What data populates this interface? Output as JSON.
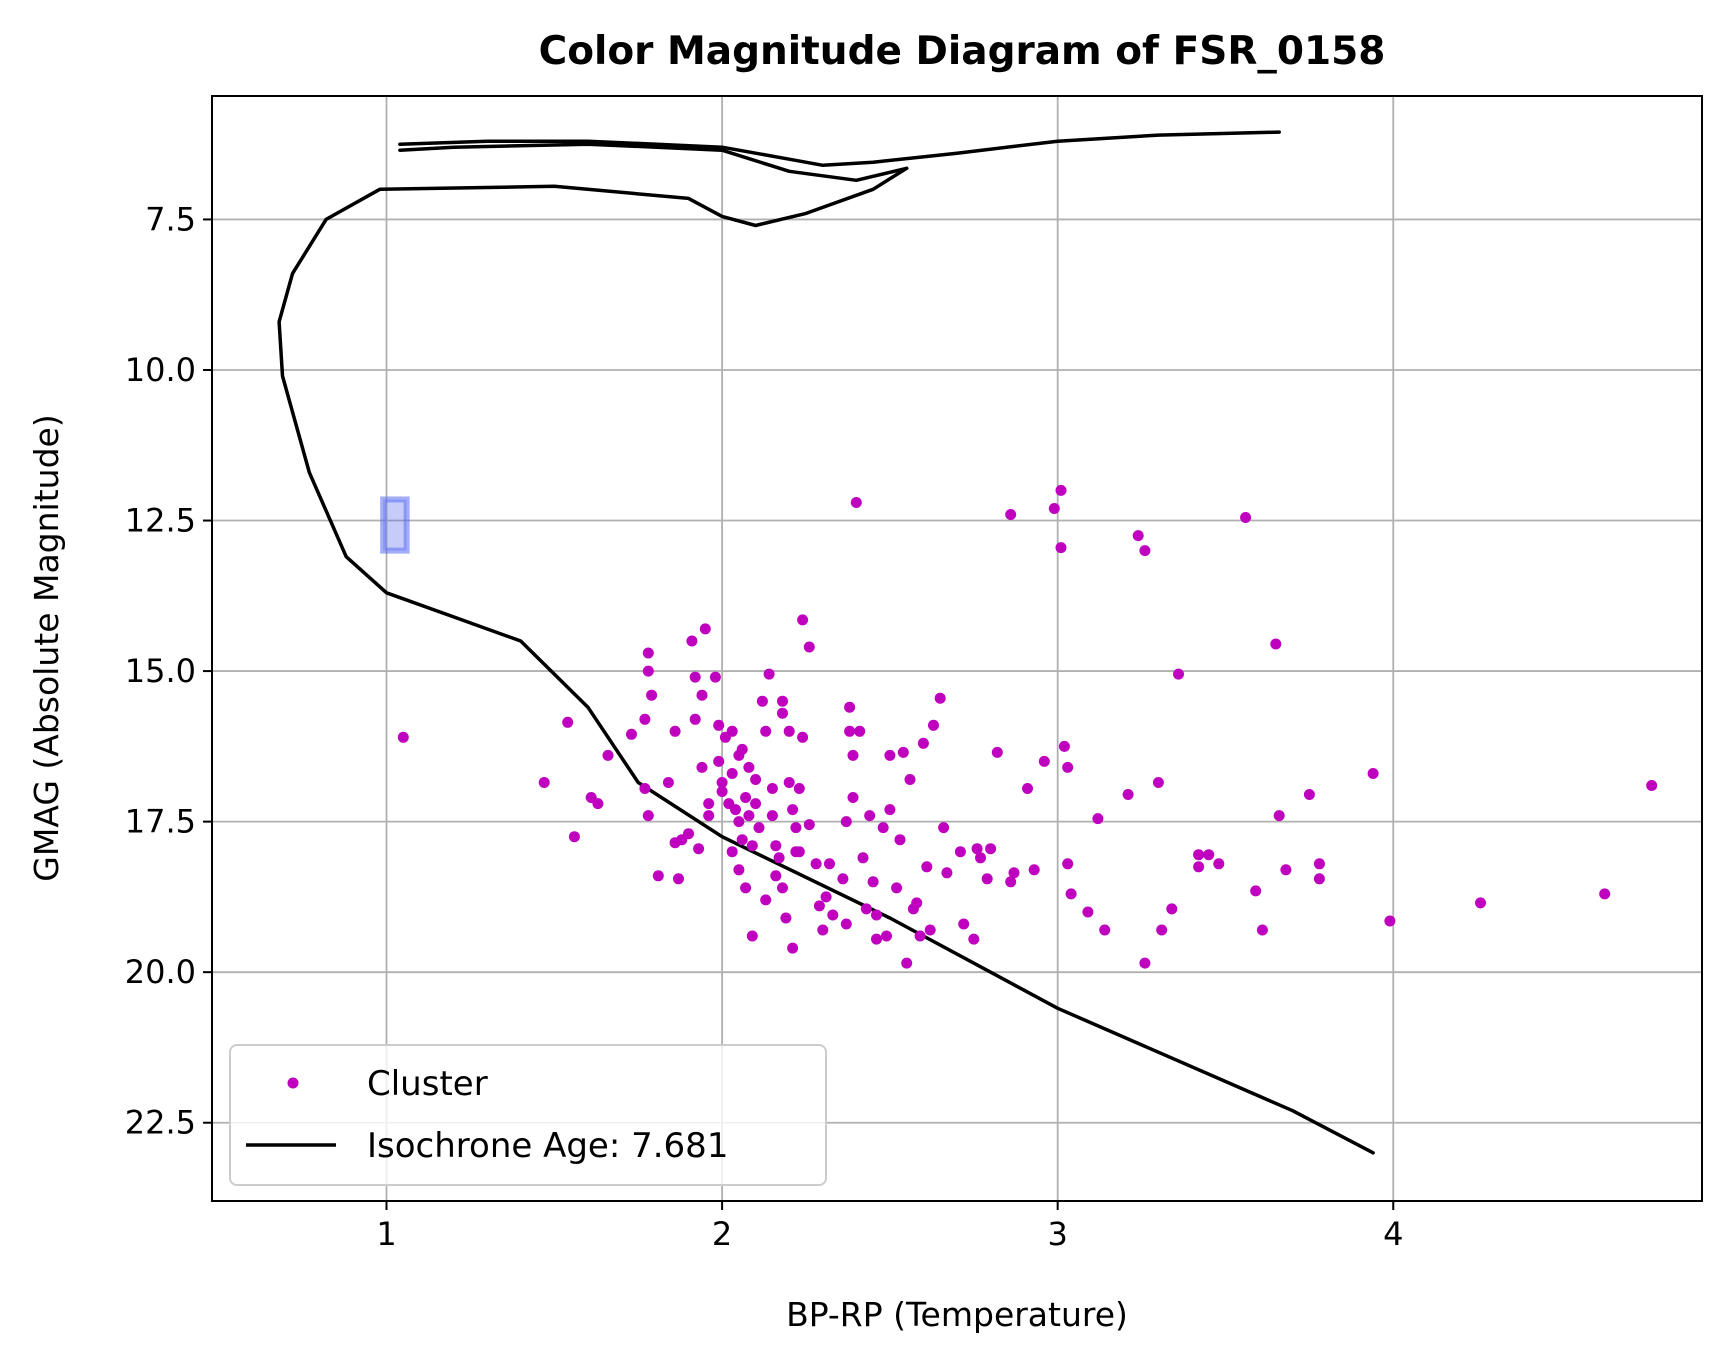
{
  "chart_data": {
    "type": "scatter",
    "title": "Color Magnitude Diagram of FSR_0158",
    "xlabel": "BP-RP (Temperature)",
    "ylabel": "GMAG (Absolute Magnitude)",
    "xlim": [
      0.48,
      4.92
    ],
    "ylim": [
      23.8,
      5.45
    ],
    "y_inverted": true,
    "grid": true,
    "legend_position": "lower-left",
    "xticks": [
      1,
      2,
      3,
      4
    ],
    "xtick_labels": [
      "1",
      "2",
      "3",
      "4"
    ],
    "yticks": [
      7.5,
      10.0,
      12.5,
      15.0,
      17.5,
      20.0,
      22.5
    ],
    "ytick_labels": [
      "7.5",
      "10.0",
      "12.5",
      "15.0",
      "17.5",
      "20.0",
      "22.5"
    ],
    "colors": {
      "cluster": "#bf00bf",
      "isochrone": "#000000",
      "highlight": "#5a6cf2"
    },
    "series": [
      {
        "name": "Cluster",
        "type": "scatter",
        "points": [
          [
            1.05,
            16.1
          ],
          [
            1.47,
            16.85
          ],
          [
            1.54,
            15.85
          ],
          [
            1.56,
            17.75
          ],
          [
            1.61,
            17.1
          ],
          [
            1.63,
            17.2
          ],
          [
            1.66,
            16.4
          ],
          [
            1.73,
            16.05
          ],
          [
            1.77,
            15.8
          ],
          [
            1.78,
            14.7
          ],
          [
            1.78,
            15.0
          ],
          [
            1.79,
            15.4
          ],
          [
            1.78,
            17.4
          ],
          [
            1.77,
            16.95
          ],
          [
            1.81,
            18.4
          ],
          [
            1.84,
            16.85
          ],
          [
            1.86,
            16.0
          ],
          [
            1.86,
            17.85
          ],
          [
            1.88,
            17.8
          ],
          [
            1.87,
            18.45
          ],
          [
            1.9,
            17.7
          ],
          [
            1.91,
            14.5
          ],
          [
            1.92,
            15.1
          ],
          [
            1.92,
            15.8
          ],
          [
            1.94,
            15.4
          ],
          [
            1.95,
            14.3
          ],
          [
            1.94,
            16.6
          ],
          [
            1.96,
            17.2
          ],
          [
            1.96,
            17.4
          ],
          [
            1.93,
            17.95
          ],
          [
            1.98,
            15.1
          ],
          [
            1.99,
            15.9
          ],
          [
            2.01,
            16.1
          ],
          [
            1.99,
            16.5
          ],
          [
            2.0,
            16.85
          ],
          [
            2.0,
            17.0
          ],
          [
            2.02,
            17.2
          ],
          [
            2.03,
            16.0
          ],
          [
            2.03,
            16.7
          ],
          [
            2.04,
            17.3
          ],
          [
            2.05,
            16.4
          ],
          [
            2.05,
            17.5
          ],
          [
            2.06,
            17.8
          ],
          [
            2.06,
            16.3
          ],
          [
            2.07,
            17.1
          ],
          [
            2.08,
            16.6
          ],
          [
            2.08,
            17.4
          ],
          [
            2.09,
            17.9
          ],
          [
            2.1,
            16.8
          ],
          [
            2.1,
            17.2
          ],
          [
            2.11,
            17.6
          ],
          [
            2.12,
            15.5
          ],
          [
            2.14,
            15.05
          ],
          [
            2.13,
            16.0
          ],
          [
            2.15,
            16.95
          ],
          [
            2.15,
            17.4
          ],
          [
            2.16,
            17.9
          ],
          [
            2.17,
            18.1
          ],
          [
            2.18,
            15.5
          ],
          [
            2.18,
            15.7
          ],
          [
            2.2,
            16.0
          ],
          [
            2.2,
            16.85
          ],
          [
            2.21,
            17.3
          ],
          [
            2.22,
            17.6
          ],
          [
            2.23,
            18.0
          ],
          [
            2.24,
            14.15
          ],
          [
            2.26,
            14.6
          ],
          [
            2.24,
            16.1
          ],
          [
            2.23,
            16.95
          ],
          [
            2.26,
            17.55
          ],
          [
            2.03,
            18.0
          ],
          [
            2.05,
            18.3
          ],
          [
            2.07,
            18.6
          ],
          [
            2.09,
            19.4
          ],
          [
            2.13,
            18.8
          ],
          [
            2.16,
            18.4
          ],
          [
            2.18,
            18.6
          ],
          [
            2.19,
            19.1
          ],
          [
            2.21,
            19.6
          ],
          [
            2.22,
            18.0
          ],
          [
            2.28,
            18.2
          ],
          [
            2.29,
            18.9
          ],
          [
            2.3,
            19.3
          ],
          [
            2.31,
            18.75
          ],
          [
            2.32,
            18.2
          ],
          [
            2.33,
            19.05
          ],
          [
            2.36,
            18.45
          ],
          [
            2.37,
            17.5
          ],
          [
            2.37,
            19.2
          ],
          [
            2.38,
            15.6
          ],
          [
            2.38,
            16.0
          ],
          [
            2.39,
            16.4
          ],
          [
            2.4,
            12.2
          ],
          [
            2.41,
            16.0
          ],
          [
            2.39,
            17.1
          ],
          [
            2.42,
            18.1
          ],
          [
            2.43,
            18.95
          ],
          [
            2.44,
            17.4
          ],
          [
            2.45,
            18.5
          ],
          [
            2.46,
            19.05
          ],
          [
            2.46,
            19.45
          ],
          [
            2.48,
            17.6
          ],
          [
            2.49,
            19.4
          ],
          [
            2.5,
            17.3
          ],
          [
            2.5,
            16.4
          ],
          [
            2.52,
            18.6
          ],
          [
            2.53,
            17.8
          ],
          [
            2.54,
            16.35
          ],
          [
            2.55,
            19.85
          ],
          [
            2.56,
            16.8
          ],
          [
            2.57,
            18.95
          ],
          [
            2.58,
            18.85
          ],
          [
            2.59,
            19.4
          ],
          [
            2.6,
            16.2
          ],
          [
            2.61,
            18.25
          ],
          [
            2.62,
            19.3
          ],
          [
            2.63,
            15.9
          ],
          [
            2.65,
            15.45
          ],
          [
            2.66,
            17.6
          ],
          [
            2.67,
            18.35
          ],
          [
            2.71,
            18.0
          ],
          [
            2.72,
            19.2
          ],
          [
            2.75,
            19.45
          ],
          [
            2.76,
            17.95
          ],
          [
            2.77,
            18.1
          ],
          [
            2.79,
            18.45
          ],
          [
            2.8,
            17.95
          ],
          [
            2.82,
            16.35
          ],
          [
            2.86,
            18.5
          ],
          [
            2.87,
            18.35
          ],
          [
            2.86,
            12.4
          ],
          [
            2.91,
            16.95
          ],
          [
            2.93,
            18.3
          ],
          [
            2.96,
            16.5
          ],
          [
            2.99,
            12.3
          ],
          [
            3.01,
            12.0
          ],
          [
            3.01,
            12.95
          ],
          [
            3.02,
            16.25
          ],
          [
            3.03,
            16.6
          ],
          [
            3.03,
            18.2
          ],
          [
            3.04,
            18.7
          ],
          [
            3.09,
            19.0
          ],
          [
            3.12,
            17.45
          ],
          [
            3.14,
            19.3
          ],
          [
            3.21,
            17.05
          ],
          [
            3.24,
            12.75
          ],
          [
            3.26,
            13.0
          ],
          [
            3.26,
            19.85
          ],
          [
            3.3,
            16.85
          ],
          [
            3.31,
            19.3
          ],
          [
            3.34,
            18.95
          ],
          [
            3.36,
            15.05
          ],
          [
            3.42,
            18.05
          ],
          [
            3.42,
            18.25
          ],
          [
            3.45,
            18.05
          ],
          [
            3.48,
            18.2
          ],
          [
            3.56,
            12.45
          ],
          [
            3.59,
            18.65
          ],
          [
            3.61,
            19.3
          ],
          [
            3.65,
            14.55
          ],
          [
            3.66,
            17.4
          ],
          [
            3.68,
            18.3
          ],
          [
            3.75,
            17.05
          ],
          [
            3.78,
            18.2
          ],
          [
            3.78,
            18.45
          ],
          [
            3.94,
            16.7
          ],
          [
            3.99,
            19.15
          ],
          [
            4.26,
            18.85
          ],
          [
            4.63,
            18.7
          ],
          [
            4.77,
            16.9
          ]
        ]
      },
      {
        "name": "Isochrone Age: 7.681",
        "type": "line",
        "branches": [
          [
            [
              3.94,
              23.0
            ],
            [
              3.7,
              22.3
            ],
            [
              3.0,
              20.6
            ],
            [
              2.5,
              19.1
            ],
            [
              2.0,
              17.75
            ],
            [
              1.75,
              16.85
            ],
            [
              1.6,
              15.6
            ],
            [
              1.4,
              14.5
            ],
            [
              1.2,
              14.1
            ],
            [
              1.0,
              13.7
            ],
            [
              0.88,
              13.1
            ],
            [
              0.77,
              11.7
            ],
            [
              0.69,
              10.1
            ],
            [
              0.68,
              9.2
            ],
            [
              0.72,
              8.4
            ],
            [
              0.82,
              7.5
            ],
            [
              0.98,
              7.0
            ],
            [
              1.5,
              6.95
            ],
            [
              1.9,
              7.15
            ],
            [
              2.0,
              7.45
            ],
            [
              2.1,
              7.6
            ],
            [
              2.25,
              7.4
            ],
            [
              2.45,
              7.0
            ],
            [
              2.55,
              6.65
            ]
          ],
          [
            [
              2.55,
              6.65
            ],
            [
              2.4,
              6.85
            ],
            [
              2.2,
              6.7
            ],
            [
              2.0,
              6.35
            ],
            [
              1.6,
              6.25
            ],
            [
              1.2,
              6.3
            ],
            [
              1.04,
              6.35
            ]
          ],
          [
            [
              1.04,
              6.25
            ],
            [
              1.3,
              6.2
            ],
            [
              1.6,
              6.2
            ],
            [
              2.0,
              6.3
            ],
            [
              2.2,
              6.5
            ],
            [
              2.3,
              6.6
            ],
            [
              2.45,
              6.55
            ],
            [
              2.7,
              6.4
            ],
            [
              3.0,
              6.2
            ],
            [
              3.3,
              6.1
            ],
            [
              3.66,
              6.05
            ]
          ]
        ]
      }
    ],
    "legend": {
      "entries": [
        {
          "label": "Cluster",
          "marker": "dot"
        },
        {
          "label": "Isochrone Age: 7.681",
          "marker": "line"
        }
      ]
    },
    "annotations": [
      {
        "type": "highlight-box",
        "x": [
          0.99,
          1.06
        ],
        "y": [
          12.15,
          13.0
        ]
      }
    ]
  }
}
